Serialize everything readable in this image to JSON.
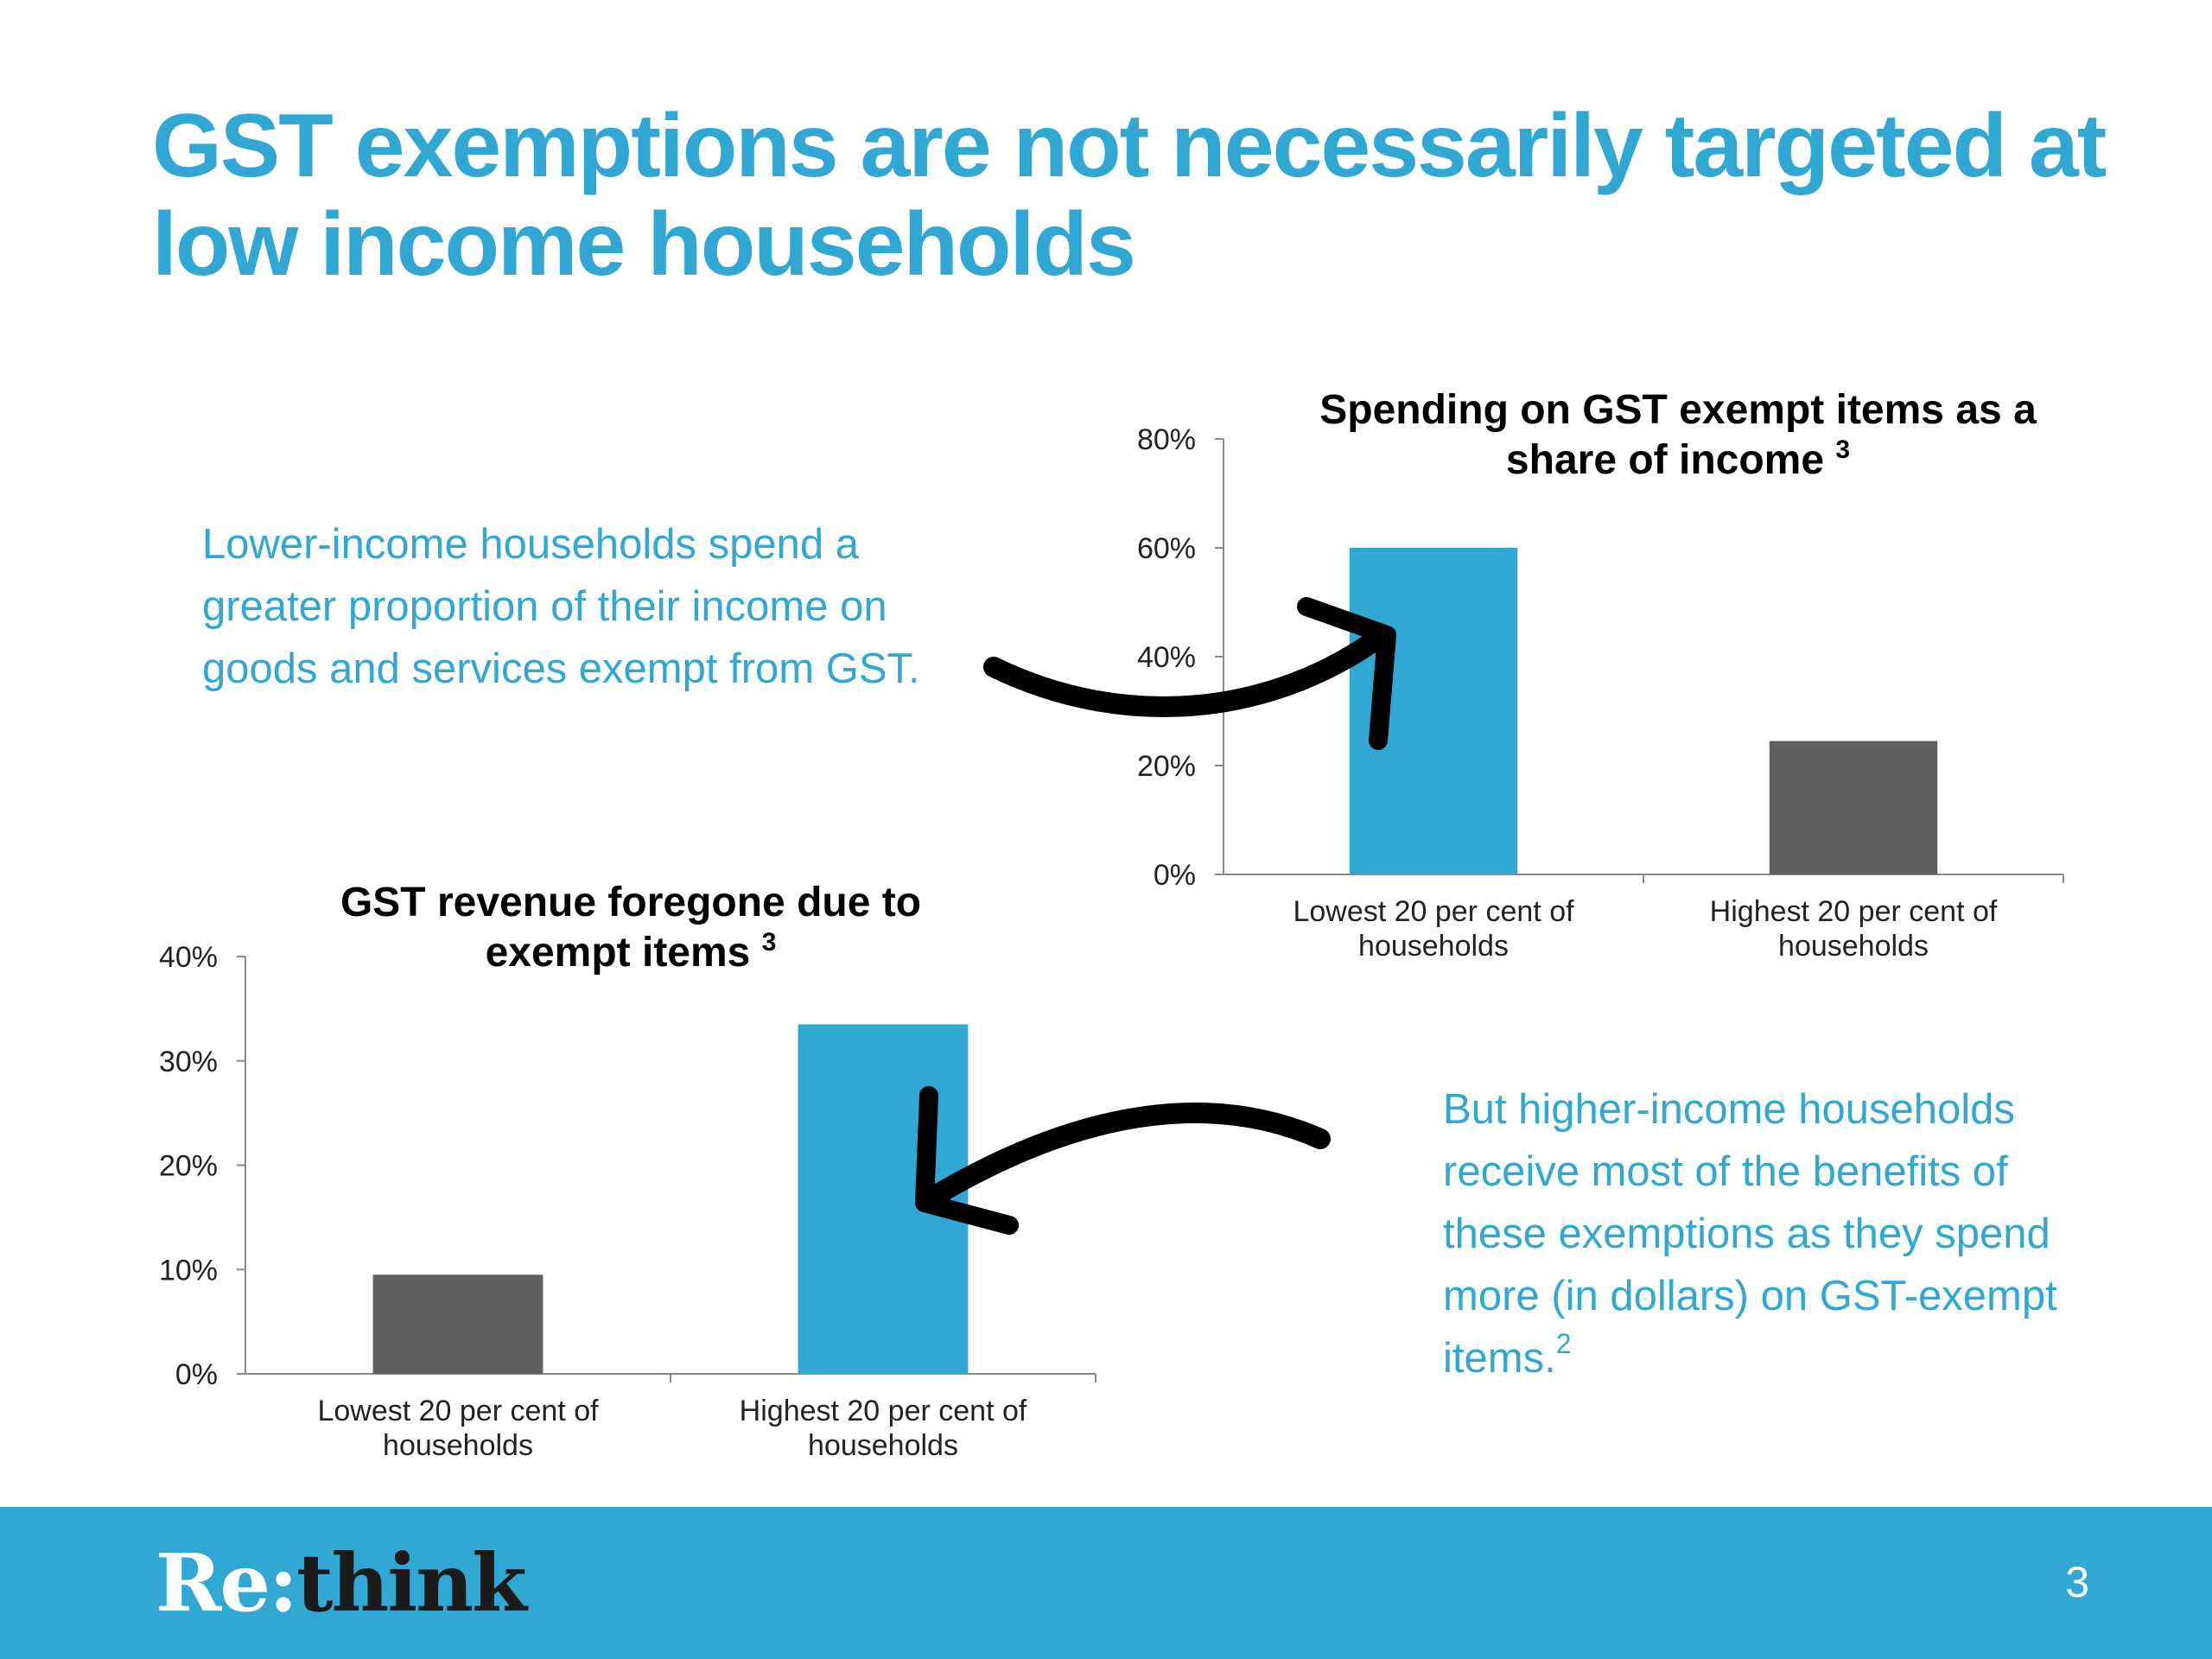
{
  "slide": {
    "title": "GST exemptions are not necessarily targeted at low income households",
    "callout_top": "Lower-income households spend a greater proportion of their income on goods and services exempt from GST.",
    "callout_bottom": "But higher-income households receive most of the benefits of these exemptions as they spend more (in dollars) on GST-exempt items.",
    "callout_bottom_sup": "2",
    "page_number": "3",
    "logo_re": "Re:",
    "logo_think": "think",
    "colors": {
      "accent": "#31a7d4",
      "dark_bar": "#606060",
      "footer": "#31a7d4"
    }
  },
  "chart_data": [
    {
      "type": "bar",
      "title": "Spending on GST exempt items as a share of income",
      "title_sup": "3",
      "categories": [
        "Lowest 20 per cent of households",
        "Highest 20 per cent of households"
      ],
      "values": [
        60,
        24.5
      ],
      "bar_colors": [
        "#31a7d4",
        "#606060"
      ],
      "ylim": [
        0,
        80
      ],
      "yticks": [
        "0%",
        "20%",
        "40%",
        "60%",
        "80%"
      ],
      "xlabel": "",
      "ylabel": "",
      "grid": false
    },
    {
      "type": "bar",
      "title": "GST revenue foregone due to exempt items",
      "title_sup": "3",
      "categories": [
        "Lowest 20 per cent of households",
        "Highest 20 per cent of households"
      ],
      "values": [
        9.5,
        33.5
      ],
      "bar_colors": [
        "#606060",
        "#31a7d4"
      ],
      "ylim": [
        0,
        40
      ],
      "yticks": [
        "0%",
        "10%",
        "20%",
        "30%",
        "40%"
      ],
      "xlabel": "",
      "ylabel": "",
      "grid": false
    }
  ]
}
